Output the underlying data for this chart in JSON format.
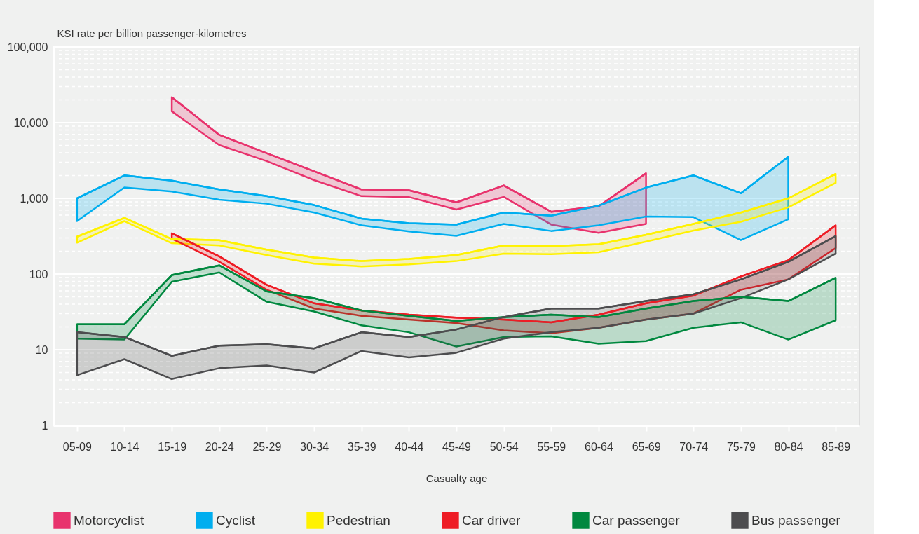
{
  "chart_data": {
    "type": "line",
    "ylabel": "KSI rate per billion passenger-kilometres",
    "xlabel": "Casualty age",
    "categories": [
      "05-09",
      "10-14",
      "15-19",
      "20-24",
      "25-29",
      "30-34",
      "35-39",
      "40-44",
      "45-49",
      "50-54",
      "55-59",
      "60-64",
      "65-69",
      "70-74",
      "75-79",
      "80-84",
      "85-89"
    ],
    "log": true,
    "ylim": [
      1,
      100000
    ],
    "yticks": [
      {
        "value": 1,
        "label": "1"
      },
      {
        "value": 2,
        "label": null
      },
      {
        "value": 3,
        "label": null
      },
      {
        "value": 4,
        "label": null
      },
      {
        "value": 5,
        "label": null
      },
      {
        "value": 6,
        "label": null
      },
      {
        "value": 7,
        "label": null
      },
      {
        "value": 8,
        "label": null
      },
      {
        "value": 9,
        "label": null
      },
      {
        "value": 10,
        "label": "10"
      },
      {
        "value": 20,
        "label": null
      },
      {
        "value": 30,
        "label": null
      },
      {
        "value": 40,
        "label": null
      },
      {
        "value": 50,
        "label": null
      },
      {
        "value": 60,
        "label": null
      },
      {
        "value": 70,
        "label": null
      },
      {
        "value": 80,
        "label": null
      },
      {
        "value": 90,
        "label": null
      },
      {
        "value": 100,
        "label": "100"
      },
      {
        "value": 200,
        "label": null
      },
      {
        "value": 300,
        "label": null
      },
      {
        "value": 400,
        "label": null
      },
      {
        "value": 500,
        "label": null
      },
      {
        "value": 600,
        "label": null
      },
      {
        "value": 700,
        "label": null
      },
      {
        "value": 800,
        "label": null
      },
      {
        "value": 900,
        "label": null
      },
      {
        "value": 1000,
        "label": "1,000"
      },
      {
        "value": 2000,
        "label": null
      },
      {
        "value": 3000,
        "label": null
      },
      {
        "value": 4000,
        "label": null
      },
      {
        "value": 5000,
        "label": null
      },
      {
        "value": 6000,
        "label": null
      },
      {
        "value": 7000,
        "label": null
      },
      {
        "value": 8000,
        "label": null
      },
      {
        "value": 9000,
        "label": null
      },
      {
        "value": 10000,
        "label": "10,000"
      },
      {
        "value": 20000,
        "label": null
      },
      {
        "value": 30000,
        "label": null
      },
      {
        "value": 40000,
        "label": null
      },
      {
        "value": 50000,
        "label": null
      },
      {
        "value": 60000,
        "label": null
      },
      {
        "value": 70000,
        "label": null
      },
      {
        "value": 80000,
        "label": null
      },
      {
        "value": 90000,
        "label": null
      },
      {
        "value": 100000,
        "label": "100,000"
      }
    ],
    "grid": true,
    "legend": "bottom",
    "series": [
      {
        "name": "Motorcyclist",
        "color": "#e8336d",
        "lower": [
          null,
          null,
          14100,
          5060,
          3100,
          1740,
          1070,
          1040,
          710,
          1045,
          450,
          350,
          460,
          null,
          null,
          null,
          null
        ],
        "values": [
          null,
          null,
          21700,
          6900,
          3950,
          2280,
          1310,
          1280,
          885,
          1480,
          665,
          785,
          2140,
          null,
          null,
          null,
          null
        ],
        "upper": [
          null,
          null,
          21700,
          6900,
          3950,
          2280,
          1310,
          1280,
          885,
          1480,
          665,
          785,
          2140,
          null,
          null,
          null,
          null
        ]
      },
      {
        "name": "Cyclist",
        "color": "#00aeef",
        "lower": [
          500,
          1390,
          1230,
          960,
          850,
          650,
          440,
          365,
          320,
          460,
          370,
          440,
          575,
          565,
          280,
          530,
          null
        ],
        "values": [
          1000,
          2010,
          1710,
          1310,
          1070,
          815,
          540,
          470,
          450,
          650,
          590,
          800,
          1390,
          2010,
          1170,
          3540,
          null
        ],
        "upper": [
          1000,
          2010,
          1710,
          1310,
          1070,
          815,
          540,
          470,
          450,
          650,
          590,
          800,
          1390,
          2010,
          1170,
          3540,
          null
        ]
      },
      {
        "name": "Pedestrian",
        "color": "#fff200",
        "lower": [
          259,
          500,
          255,
          238,
          178,
          137,
          126,
          134,
          148,
          186,
          183,
          194,
          268,
          375,
          490,
          760,
          1600
        ],
        "values": [
          311,
          553,
          290,
          280,
          210,
          165,
          148,
          158,
          178,
          238,
          233,
          248,
          330,
          460,
          650,
          1000,
          2100
        ],
        "upper": [
          311,
          553,
          290,
          280,
          210,
          165,
          148,
          158,
          178,
          238,
          233,
          248,
          330,
          460,
          650,
          1000,
          2100
        ]
      },
      {
        "name": "Car driver",
        "color": "#ee1c25",
        "lower": [
          null,
          null,
          293,
          145,
          62,
          35,
          28,
          25,
          22.5,
          18,
          16.5,
          19.5,
          25,
          30,
          62,
          85,
          220
        ],
        "values": [
          null,
          null,
          345,
          171,
          72,
          41,
          33,
          29,
          26.5,
          25,
          23,
          29,
          41,
          52,
          93,
          152,
          440
        ],
        "upper": [
          null,
          null,
          345,
          171,
          72,
          41,
          33,
          29,
          26.5,
          25,
          23,
          29,
          41,
          52,
          93,
          152,
          440
        ]
      },
      {
        "name": "Car passenger",
        "color": "#00883f",
        "lower": [
          14,
          13.6,
          79,
          105,
          43,
          32,
          21,
          17,
          11,
          14.7,
          15,
          12,
          13,
          19.5,
          23,
          13.6,
          24.5
        ],
        "values": [
          21.7,
          21.7,
          97,
          130,
          59,
          48,
          33,
          28,
          24,
          27,
          29,
          27,
          35,
          44,
          50,
          44,
          89
        ],
        "upper": [
          21.7,
          21.7,
          97,
          130,
          59,
          48,
          33,
          28,
          24,
          27,
          29,
          27,
          35,
          44,
          50,
          44,
          89
        ]
      },
      {
        "name": "Bus passenger",
        "color": "#4d4d4f",
        "lower": [
          4.6,
          7.5,
          4.1,
          5.7,
          6.2,
          5,
          9.6,
          7.9,
          9.1,
          14,
          17,
          19.5,
          25,
          30,
          48,
          85,
          186
        ],
        "values": [
          17,
          14.7,
          8.3,
          11.3,
          11.8,
          10.4,
          17,
          14.7,
          18.5,
          27,
          35,
          35,
          44,
          54,
          85,
          145,
          317
        ],
        "upper": [
          17,
          14.7,
          8.3,
          11.3,
          11.8,
          10.4,
          17,
          14.7,
          18.5,
          27,
          35,
          35,
          44,
          54,
          85,
          145,
          317
        ]
      }
    ]
  }
}
